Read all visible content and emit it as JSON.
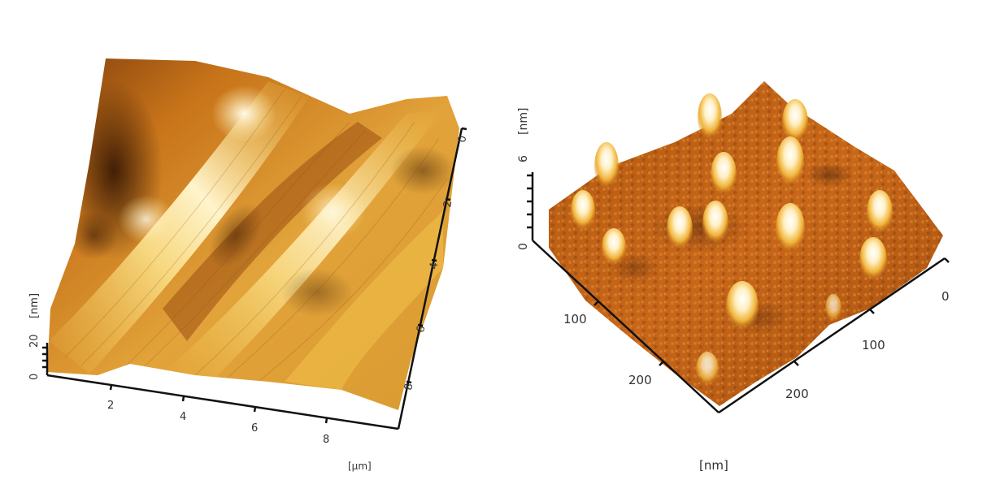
{
  "left_plot": {
    "z_unit": "[nm]",
    "z_ticks": [
      "0",
      "20"
    ],
    "x_unit": "[µm]",
    "x_ticks": [
      "2",
      "4",
      "6",
      "8"
    ],
    "y_ticks": [
      "0",
      "2",
      "4",
      "6",
      "8"
    ]
  },
  "right_plot": {
    "z_unit": "[nm]",
    "z_ticks": [
      "0",
      "6"
    ],
    "x_unit": "[nm]",
    "x_ticks": [
      "100",
      "200"
    ],
    "y_ticks": [
      "0",
      "100",
      "200"
    ]
  },
  "colors": {
    "surface_dark": "#4a2408",
    "surface_mid": "#c8741a",
    "surface_light": "#f2c84a",
    "surface_highlight": "#fff6d8",
    "axis": "#111111"
  }
}
